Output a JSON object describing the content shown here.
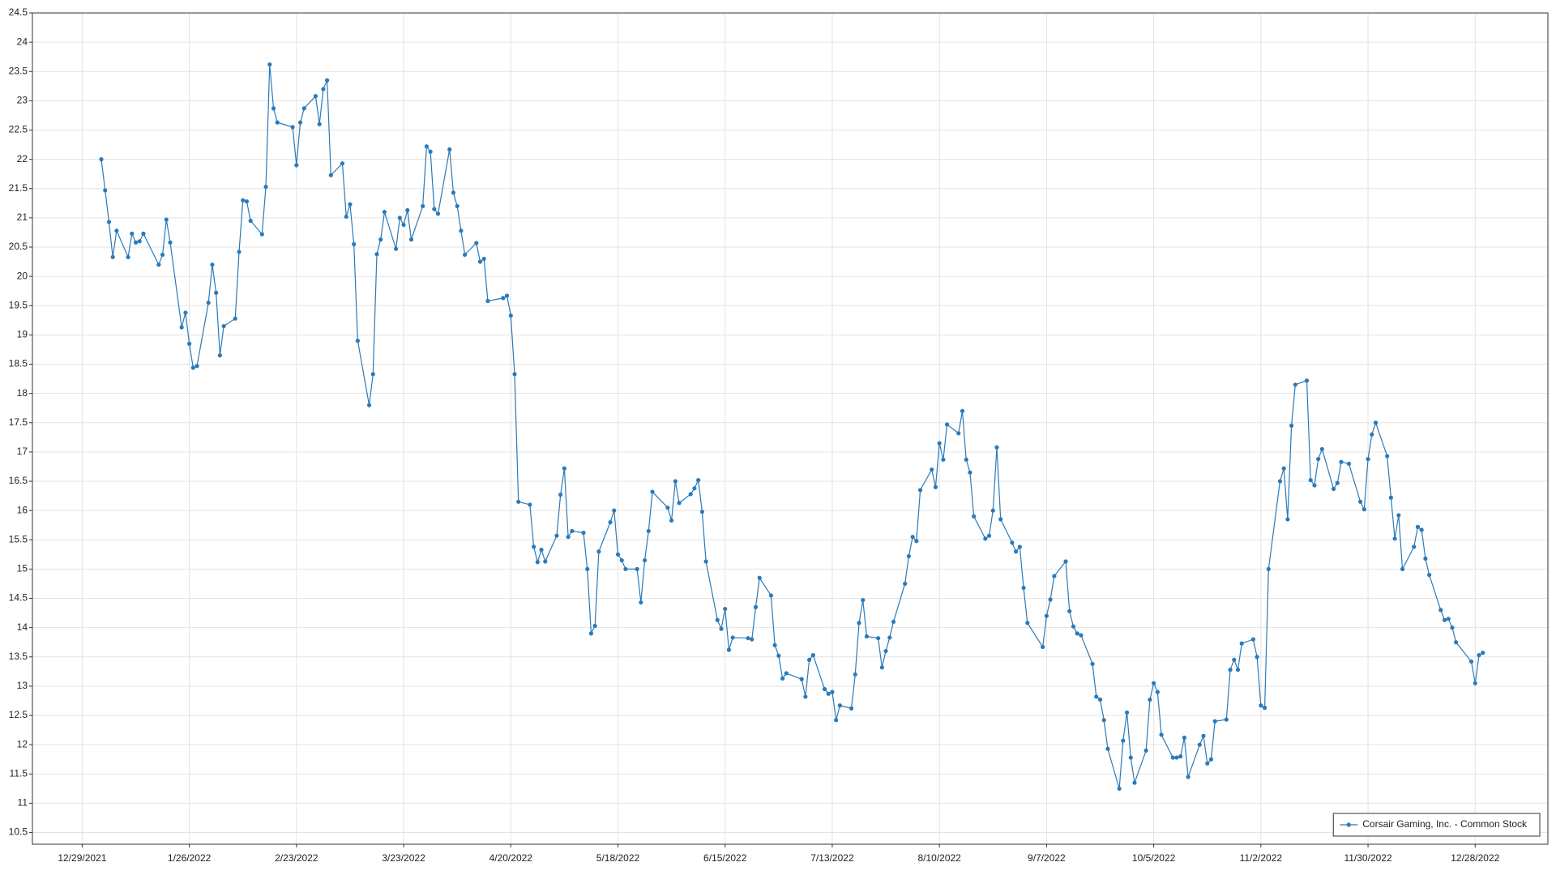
{
  "chart_data": {
    "type": "line",
    "x": [
      "1/3/2022",
      "1/4/2022",
      "1/5/2022",
      "1/6/2022",
      "1/7/2022",
      "1/10/2022",
      "1/11/2022",
      "1/12/2022",
      "1/13/2022",
      "1/14/2022",
      "1/18/2022",
      "1/19/2022",
      "1/20/2022",
      "1/21/2022",
      "1/24/2022",
      "1/25/2022",
      "1/26/2022",
      "1/27/2022",
      "1/28/2022",
      "1/31/2022",
      "2/1/2022",
      "2/2/2022",
      "2/3/2022",
      "2/4/2022",
      "2/7/2022",
      "2/8/2022",
      "2/9/2022",
      "2/10/2022",
      "2/11/2022",
      "2/14/2022",
      "2/15/2022",
      "2/16/2022",
      "2/17/2022",
      "2/18/2022",
      "2/22/2022",
      "2/23/2022",
      "2/24/2022",
      "2/25/2022",
      "2/28/2022",
      "3/1/2022",
      "3/2/2022",
      "3/3/2022",
      "3/4/2022",
      "3/7/2022",
      "3/8/2022",
      "3/9/2022",
      "3/10/2022",
      "3/11/2022",
      "3/14/2022",
      "3/15/2022",
      "3/16/2022",
      "3/17/2022",
      "3/18/2022",
      "3/21/2022",
      "3/22/2022",
      "3/23/2022",
      "3/24/2022",
      "3/25/2022",
      "3/28/2022",
      "3/29/2022",
      "3/30/2022",
      "3/31/2022",
      "4/1/2022",
      "4/4/2022",
      "4/5/2022",
      "4/6/2022",
      "4/7/2022",
      "4/8/2022",
      "4/11/2022",
      "4/12/2022",
      "4/13/2022",
      "4/14/2022",
      "4/18/2022",
      "4/19/2022",
      "4/20/2022",
      "4/21/2022",
      "4/22/2022",
      "4/25/2022",
      "4/26/2022",
      "4/27/2022",
      "4/28/2022",
      "4/29/2022",
      "5/2/2022",
      "5/3/2022",
      "5/4/2022",
      "5/5/2022",
      "5/6/2022",
      "5/9/2022",
      "5/10/2022",
      "5/11/2022",
      "5/12/2022",
      "5/13/2022",
      "5/16/2022",
      "5/17/2022",
      "5/18/2022",
      "5/19/2022",
      "5/20/2022",
      "5/23/2022",
      "5/24/2022",
      "5/25/2022",
      "5/26/2022",
      "5/27/2022",
      "5/31/2022",
      "6/1/2022",
      "6/2/2022",
      "6/3/2022",
      "6/6/2022",
      "6/7/2022",
      "6/8/2022",
      "6/9/2022",
      "6/10/2022",
      "6/13/2022",
      "6/14/2022",
      "6/15/2022",
      "6/16/2022",
      "6/17/2022",
      "6/21/2022",
      "6/22/2022",
      "6/23/2022",
      "6/24/2022",
      "6/27/2022",
      "6/28/2022",
      "6/29/2022",
      "6/30/2022",
      "7/1/2022",
      "7/5/2022",
      "7/6/2022",
      "7/7/2022",
      "7/8/2022",
      "7/11/2022",
      "7/12/2022",
      "7/13/2022",
      "7/14/2022",
      "7/15/2022",
      "7/18/2022",
      "7/19/2022",
      "7/20/2022",
      "7/21/2022",
      "7/22/2022",
      "7/25/2022",
      "7/26/2022",
      "7/27/2022",
      "7/28/2022",
      "7/29/2022",
      "8/1/2022",
      "8/2/2022",
      "8/3/2022",
      "8/4/2022",
      "8/5/2022",
      "8/8/2022",
      "8/9/2022",
      "8/10/2022",
      "8/11/2022",
      "8/12/2022",
      "8/15/2022",
      "8/16/2022",
      "8/17/2022",
      "8/18/2022",
      "8/19/2022",
      "8/22/2022",
      "8/23/2022",
      "8/24/2022",
      "8/25/2022",
      "8/26/2022",
      "8/29/2022",
      "8/30/2022",
      "8/31/2022",
      "9/1/2022",
      "9/2/2022",
      "9/6/2022",
      "9/7/2022",
      "9/8/2022",
      "9/9/2022",
      "9/12/2022",
      "9/13/2022",
      "9/14/2022",
      "9/15/2022",
      "9/16/2022",
      "9/19/2022",
      "9/20/2022",
      "9/21/2022",
      "9/22/2022",
      "9/23/2022",
      "9/26/2022",
      "9/27/2022",
      "9/28/2022",
      "9/29/2022",
      "9/30/2022",
      "10/3/2022",
      "10/4/2022",
      "10/5/2022",
      "10/6/2022",
      "10/7/2022",
      "10/10/2022",
      "10/11/2022",
      "10/12/2022",
      "10/13/2022",
      "10/14/2022",
      "10/17/2022",
      "10/18/2022",
      "10/19/2022",
      "10/20/2022",
      "10/21/2022",
      "10/24/2022",
      "10/25/2022",
      "10/26/2022",
      "10/27/2022",
      "10/28/2022",
      "10/31/2022",
      "11/1/2022",
      "11/2/2022",
      "11/3/2022",
      "11/4/2022",
      "11/7/2022",
      "11/8/2022",
      "11/9/2022",
      "11/10/2022",
      "11/11/2022",
      "11/14/2022",
      "11/15/2022",
      "11/16/2022",
      "11/17/2022",
      "11/18/2022",
      "11/21/2022",
      "11/22/2022",
      "11/23/2022",
      "11/25/2022",
      "11/28/2022",
      "11/29/2022",
      "11/30/2022",
      "12/1/2022",
      "12/2/2022",
      "12/5/2022",
      "12/6/2022",
      "12/7/2022",
      "12/8/2022",
      "12/9/2022",
      "12/12/2022",
      "12/13/2022",
      "12/14/2022",
      "12/15/2022",
      "12/16/2022",
      "12/19/2022",
      "12/20/2022",
      "12/21/2022",
      "12/22/2022",
      "12/23/2022",
      "12/27/2022",
      "12/28/2022",
      "12/29/2022",
      "12/30/2022"
    ],
    "series": [
      {
        "name": "Corsair Gaming, Inc. - Common Stock",
        "color": "#2a7ab9",
        "values": [
          22.0,
          21.47,
          20.93,
          20.33,
          20.78,
          20.33,
          20.73,
          20.58,
          20.6,
          20.73,
          20.2,
          20.37,
          20.97,
          20.58,
          19.13,
          19.38,
          18.85,
          18.44,
          18.47,
          19.55,
          20.2,
          19.72,
          18.65,
          19.15,
          19.28,
          20.42,
          21.3,
          21.28,
          20.95,
          20.72,
          21.53,
          23.62,
          22.87,
          22.63,
          22.55,
          21.9,
          22.63,
          22.87,
          23.08,
          22.6,
          23.2,
          23.35,
          21.73,
          21.93,
          21.02,
          21.23,
          20.55,
          18.9,
          17.8,
          18.33,
          20.38,
          20.63,
          21.1,
          20.47,
          21.0,
          20.88,
          21.13,
          20.63,
          21.2,
          22.22,
          22.13,
          21.15,
          21.07,
          22.17,
          21.43,
          21.2,
          20.78,
          20.37,
          20.57,
          20.25,
          20.3,
          19.58,
          19.63,
          19.67,
          19.33,
          18.33,
          16.15,
          16.1,
          15.38,
          15.12,
          15.33,
          15.13,
          15.57,
          16.27,
          16.72,
          15.55,
          15.65,
          15.62,
          15.0,
          13.9,
          14.03,
          15.3,
          15.8,
          16.0,
          15.25,
          15.15,
          15.0,
          15.0,
          14.43,
          15.15,
          15.65,
          16.32,
          16.05,
          15.83,
          16.5,
          16.13,
          16.28,
          16.38,
          16.52,
          15.98,
          15.13,
          14.13,
          13.98,
          14.32,
          13.62,
          13.83,
          13.82,
          13.8,
          14.35,
          14.85,
          14.55,
          13.7,
          13.52,
          13.13,
          13.22,
          13.12,
          12.82,
          13.45,
          13.53,
          12.95,
          12.87,
          12.9,
          12.42,
          12.67,
          12.62,
          13.2,
          14.08,
          14.47,
          13.85,
          13.82,
          13.32,
          13.6,
          13.83,
          14.1,
          14.75,
          15.22,
          15.55,
          15.48,
          16.35,
          16.7,
          16.4,
          17.15,
          16.87,
          17.47,
          17.32,
          17.7,
          16.87,
          16.65,
          15.9,
          15.52,
          15.57,
          16.0,
          17.08,
          15.85,
          15.45,
          15.3,
          15.38,
          14.68,
          14.08,
          13.67,
          14.2,
          14.48,
          14.88,
          15.13,
          14.28,
          14.02,
          13.9,
          13.87,
          13.38,
          12.82,
          12.77,
          12.42,
          11.93,
          11.25,
          12.07,
          12.55,
          11.78,
          11.35,
          11.9,
          12.77,
          13.05,
          12.9,
          12.17,
          11.78,
          11.78,
          11.8,
          12.12,
          11.45,
          12.0,
          12.15,
          11.68,
          11.75,
          12.4,
          12.43,
          13.28,
          13.45,
          13.28,
          13.73,
          13.8,
          13.5,
          12.67,
          12.63,
          15.0,
          16.5,
          16.72,
          15.85,
          17.45,
          18.15,
          18.22,
          16.52,
          16.43,
          16.88,
          17.05,
          16.37,
          16.47,
          16.83,
          16.8,
          16.15,
          16.02,
          16.88,
          17.3,
          17.5,
          16.93,
          16.22,
          15.52,
          15.92,
          15.0,
          15.38,
          15.72,
          15.67,
          15.18,
          14.9,
          14.3,
          14.13,
          14.15,
          14.0,
          13.75,
          13.42,
          13.05,
          13.53,
          13.57
        ]
      }
    ],
    "xlim": [
      "12/16/2021",
      "1/16/2023"
    ],
    "xticks": [
      "12/29/2021",
      "1/26/2022",
      "2/23/2022",
      "3/23/2022",
      "4/20/2022",
      "5/18/2022",
      "6/15/2022",
      "7/13/2022",
      "8/10/2022",
      "9/7/2022",
      "10/5/2022",
      "11/2/2022",
      "11/30/2022",
      "12/28/2022"
    ],
    "ylim": [
      10.3,
      24.5
    ],
    "yticks": [
      10.5,
      11,
      11.5,
      12,
      12.5,
      13,
      13.5,
      14,
      14.5,
      15,
      15.5,
      16,
      16.5,
      17,
      17.5,
      18,
      18.5,
      19,
      19.5,
      20,
      20.5,
      21,
      21.5,
      22,
      22.5,
      23,
      23.5,
      24,
      24.5
    ],
    "grid": true,
    "legend": "lower right"
  }
}
